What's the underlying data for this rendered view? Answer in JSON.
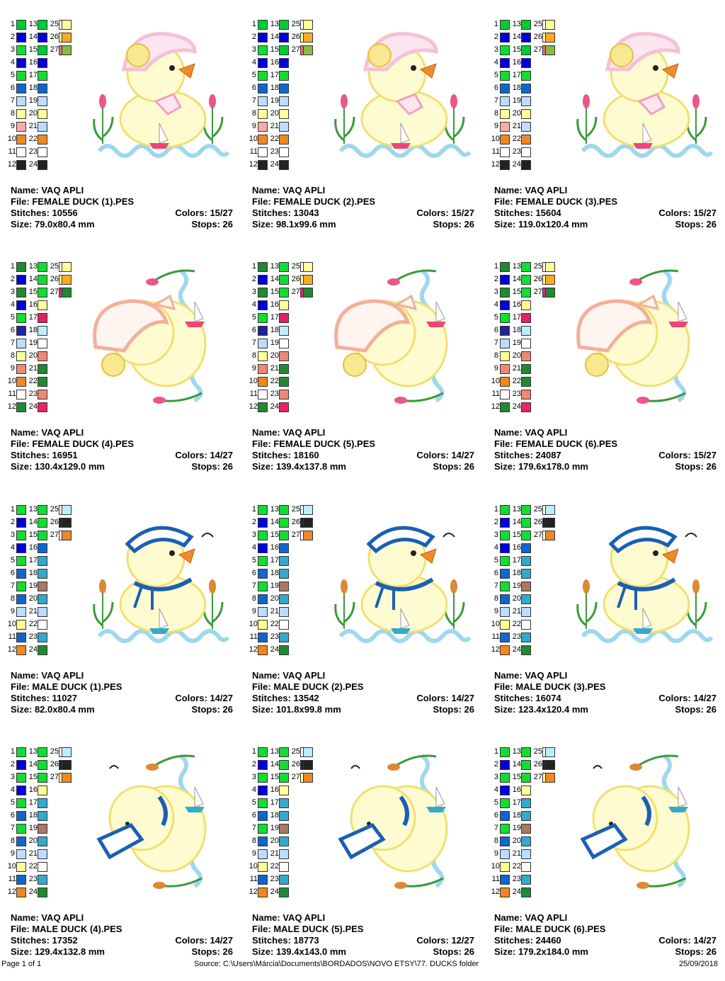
{
  "palettes": {
    "female_a": {
      "c1": [
        "#00CC33",
        "#0000DD",
        "#11DD33",
        "#0000DD",
        "#11DD33",
        "#1166CC",
        "#BBDDFF",
        "#FFFF99",
        "#FFAAAA",
        "#EE8822",
        "#FFFFFF",
        "#222222"
      ],
      "c2": [
        "#00CC33",
        "#0000DD",
        "#00CC33",
        "#0000DD",
        "#11DD33",
        "#1166CC",
        "#BBDDFF",
        "#FFFF99",
        "#BBDDFF",
        "#EE8822",
        "#FFFFFF",
        "#222222"
      ],
      "c3": [
        "#FFFFFF",
        "#FFFF99",
        "#EE6677",
        "#AA7766",
        "#DD2266",
        "#BBDDFF",
        "#FFFFFF",
        "#FFCCDD",
        "#FFBBCC",
        "#228833",
        "#FFCCDD",
        "#DD44AA"
      ],
      "c4": [
        "#FFFF99",
        "#FFAA22",
        "#88BB44"
      ]
    },
    "female_b": {
      "c1": [
        "#228833",
        "#0000DD",
        "#228833",
        "#0000DD",
        "#11DD33",
        "#222299",
        "#BBDDFF",
        "#FFFF99",
        "#EE8877",
        "#EE8822",
        "#FFFFFF",
        "#228833"
      ],
      "c2": [
        "#11DD33",
        "#11DD33",
        "#11DD33",
        "#FFFF99",
        "#DD2266",
        "#BBEEFF",
        "#FFFFFF",
        "#EE8877",
        "#228833",
        "#228833",
        "#EE8877",
        "#EE2266"
      ],
      "c3": [
        "#FFFFFF",
        "#FFFF99",
        "#EE2288"
      ],
      "c4": [
        "#FFFF99",
        "#FFAA22",
        "#228833"
      ]
    },
    "male_a": {
      "c1": [
        "#11DD33",
        "#0000DD",
        "#11DD33",
        "#0000DD",
        "#11DD33",
        "#1166CC",
        "#11DD33",
        "#1166CC",
        "#BBDDFF",
        "#FFFF99",
        "#1166CC",
        "#EE8822"
      ],
      "c2": [
        "#11DD33",
        "#11DD33",
        "#11DD33",
        "#1166CC",
        "#33AACC",
        "#33AACC",
        "#AA7766",
        "#33AACC",
        "#BBDDFF",
        "#FFFFFF",
        "#33AACC",
        "#228833"
      ],
      "c3": [
        "#FFFFFF",
        "#222222",
        "#FFFFFF"
      ],
      "c4": [
        "#BBEEFF",
        "#222222",
        "#EE8822"
      ]
    },
    "male_b": {
      "c1": [
        "#11DD33",
        "#0000DD",
        "#11DD33",
        "#0000DD",
        "#11DD33",
        "#1166CC",
        "#11DD33",
        "#1166CC",
        "#BBDDFF",
        "#FFFF99",
        "#1166CC",
        "#EE8822"
      ],
      "c2": [
        "#11DD33",
        "#11DD33",
        "#11DD33",
        "#FFFF99",
        "#33AACC",
        "#33AACC",
        "#AA7766",
        "#33AACC",
        "#BBDDFF",
        "#FFFFFF",
        "#33AACC",
        "#228833"
      ],
      "c3": [
        "#FFFFFF",
        "#222222",
        "#FFFF99"
      ],
      "c4": [
        "#BBEEFF",
        "#222222",
        "#EE8822"
      ]
    }
  },
  "designs": [
    {
      "name": "Name: VAQ APLI",
      "file": "File: FEMALE DUCK (1).PES",
      "stitches": "Stitches: 10556",
      "colors": "Colors: 15/27",
      "size": "Size: 79.0x80.4 mm",
      "stops": "Stops: 26",
      "palette": "female_a",
      "art": "female-front"
    },
    {
      "name": "Name: VAQ APLI",
      "file": "File: FEMALE DUCK (2).PES",
      "stitches": "Stitches: 13043",
      "colors": "Colors: 15/27",
      "size": "Size: 98.1x99.6 mm",
      "stops": "Stops: 26",
      "palette": "female_a",
      "art": "female-front"
    },
    {
      "name": "Name: VAQ APLI",
      "file": "File: FEMALE DUCK (3).PES",
      "stitches": "Stitches: 15604",
      "colors": "Colors: 15/27",
      "size": "Size: 119.0x120.4 mm",
      "stops": "Stops: 26",
      "palette": "female_a",
      "art": "female-front"
    },
    {
      "name": "Name: VAQ APLI",
      "file": "File: FEMALE DUCK (4).PES",
      "stitches": "Stitches: 16951",
      "colors": "Colors: 14/27",
      "size": "Size: 130.4x129.0 mm",
      "stops": "Stops: 26",
      "palette": "female_b",
      "art": "female-side"
    },
    {
      "name": "Name: VAQ APLI",
      "file": "File: FEMALE DUCK (5).PES",
      "stitches": "Stitches: 18160",
      "colors": "Colors: 14/27",
      "size": "Size: 139.4x137.8 mm",
      "stops": "Stops: 26",
      "palette": "female_b",
      "art": "female-side"
    },
    {
      "name": "Name: VAQ APLI",
      "file": "File: FEMALE DUCK (6).PES",
      "stitches": "Stitches: 24087",
      "colors": "Colors: 15/27",
      "size": "Size: 179.6x178.0 mm",
      "stops": "Stops: 26",
      "palette": "female_b",
      "art": "female-side"
    },
    {
      "name": "Name: VAQ APLI",
      "file": "File: MALE DUCK (1).PES",
      "stitches": "Stitches: 11027",
      "colors": "Colors: 14/27",
      "size": "Size: 82.0x80.4 mm",
      "stops": "Stops: 26",
      "palette": "male_a",
      "art": "male-front"
    },
    {
      "name": "Name: VAQ APLI",
      "file": "File: MALE DUCK (2).PES",
      "stitches": "Stitches: 13542",
      "colors": "Colors: 14/27",
      "size": "Size: 101.8x99.8 mm",
      "stops": "Stops: 26",
      "palette": "male_a",
      "art": "male-front"
    },
    {
      "name": "Name: VAQ APLI",
      "file": "File: MALE DUCK (3).PES",
      "stitches": "Stitches: 16074",
      "colors": "Colors: 14/27",
      "size": "Size: 123.4x120.4 mm",
      "stops": "Stops: 26",
      "palette": "male_a",
      "art": "male-front"
    },
    {
      "name": "Name: VAQ APLI",
      "file": "File: MALE DUCK (4).PES",
      "stitches": "Stitches: 17352",
      "colors": "Colors: 14/27",
      "size": "Size: 129.4x132.8 mm",
      "stops": "Stops: 26",
      "palette": "male_b",
      "art": "male-side"
    },
    {
      "name": "Name: VAQ APLI",
      "file": "File: MALE DUCK (5).PES",
      "stitches": "Stitches: 18773",
      "colors": "Colors: 12/27",
      "size": "Size: 139.4x143.0 mm",
      "stops": "Stops: 26",
      "palette": "male_b",
      "art": "male-side"
    },
    {
      "name": "Name: VAQ APLI",
      "file": "File: MALE DUCK (6).PES",
      "stitches": "Stitches: 24460",
      "colors": "Colors: 14/27",
      "size": "Size: 179.2x184.0 mm",
      "stops": "Stops: 26",
      "palette": "male_b",
      "art": "male-side"
    }
  ],
  "footer": {
    "page": "Page 1 of 1",
    "source": "Source: C:\\Users\\Márcia\\Documents\\BORDADOS\\NOVO ETSY\\77. DUCKS folder",
    "date": "25/09/2018"
  }
}
